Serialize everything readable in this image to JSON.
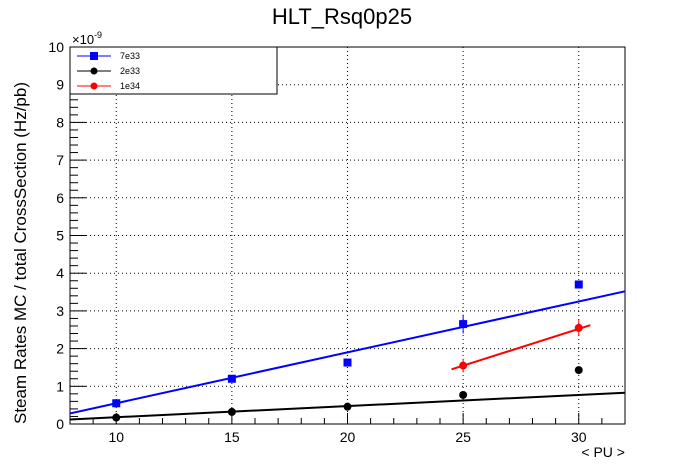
{
  "chart_data": {
    "type": "scatter",
    "title": "HLT_Rsq0p25",
    "xlabel": "< PU >",
    "ylabel": "Steam Rates MC / total CrossSection (Hz/pb)",
    "y_exponent_base": "×10",
    "y_exponent_power": "-9",
    "xlim": [
      8,
      32
    ],
    "ylim": [
      0,
      10
    ],
    "x_ticks": [
      "10",
      "15",
      "20",
      "25",
      "30"
    ],
    "y_ticks": [
      "0",
      "1",
      "2",
      "3",
      "4",
      "5",
      "6",
      "7",
      "8",
      "9",
      "10"
    ],
    "grid": true,
    "legend_position": "top-left",
    "series": [
      {
        "name": "7e33",
        "color": "#0000ff",
        "marker": "square",
        "points": [
          {
            "x": 10,
            "y": 0.55,
            "err": 0.05
          },
          {
            "x": 15,
            "y": 1.2,
            "err": 0.06
          },
          {
            "x": 20,
            "y": 1.63,
            "err": 0.07
          },
          {
            "x": 25,
            "y": 2.65,
            "err": 0.25
          },
          {
            "x": 30,
            "y": 3.7,
            "err": 0.1
          }
        ],
        "fit": {
          "x0": 8,
          "y0": 0.28,
          "x1": 32,
          "y1": 3.52
        }
      },
      {
        "name": "2e33",
        "color": "#000000",
        "marker": "circle",
        "points": [
          {
            "x": 10,
            "y": 0.17,
            "err": 0.03
          },
          {
            "x": 15,
            "y": 0.32,
            "err": 0.03
          },
          {
            "x": 20,
            "y": 0.46,
            "err": 0.04
          },
          {
            "x": 25,
            "y": 0.77,
            "err": 0.05
          },
          {
            "x": 30,
            "y": 1.43,
            "err": 0.06
          }
        ],
        "fit": {
          "x0": 8,
          "y0": 0.12,
          "x1": 32,
          "y1": 0.83
        }
      },
      {
        "name": "1e34",
        "color": "#ff0000",
        "marker": "circle",
        "points": [
          {
            "x": 25,
            "y": 1.55,
            "err": 0.18
          },
          {
            "x": 30,
            "y": 2.55,
            "err": 0.22
          }
        ],
        "fit": {
          "x0": 24.5,
          "y0": 1.45,
          "x1": 30.5,
          "y1": 2.62
        }
      }
    ]
  }
}
